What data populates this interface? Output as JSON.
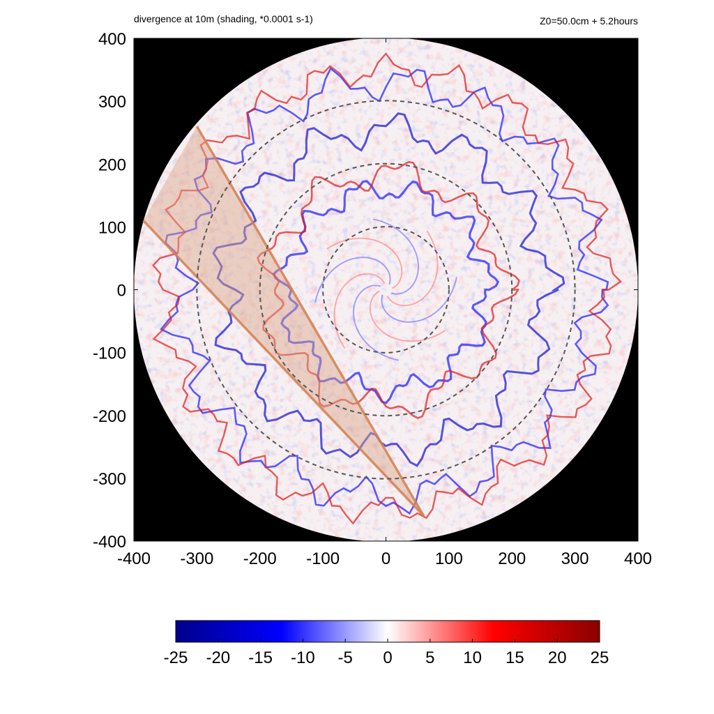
{
  "header": {
    "title": "divergence at 10m (shading, *0.0001 s-1)",
    "subtitle": "Z0=50.0cm  + 5.2hours"
  },
  "chart_data": {
    "type": "heatmap",
    "title": "divergence at 10m (shading, *0.0001 s-1)",
    "subtitle": "Z0=50.0cm  + 5.2hours",
    "xlim": [
      -400,
      400
    ],
    "ylim": [
      -400,
      400
    ],
    "x_ticks": [
      -400,
      -300,
      -200,
      -100,
      0,
      100,
      200,
      300,
      400
    ],
    "y_ticks": [
      -400,
      -300,
      -200,
      -100,
      0,
      100,
      200,
      300,
      400
    ],
    "domain_radius": 400,
    "outside_color": "#000000",
    "dashed_circles_radius": [
      100,
      200,
      300
    ],
    "shaded_wedge": {
      "apex": [
        60,
        -360
      ],
      "edges": [
        [
          -300,
          260
        ],
        [
          -385,
          110
        ]
      ],
      "fill_color": "#d9a488",
      "line_color": "#d2804f"
    },
    "colorbar": {
      "min": -25,
      "max": 25,
      "ticks": [
        -25,
        -20,
        -15,
        -10,
        -5,
        0,
        5,
        10,
        15,
        20,
        25
      ],
      "colors": [
        "#00008b",
        "#0000ff",
        "#ffffff",
        "#ff0000",
        "#8b0000"
      ]
    }
  }
}
